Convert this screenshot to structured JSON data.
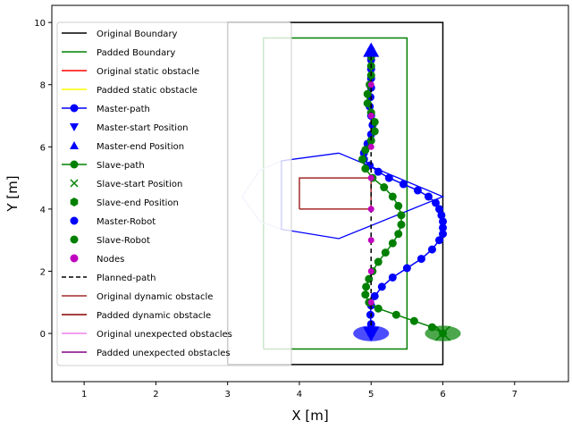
{
  "chart_data": {
    "type": "line",
    "xlabel": "X [m]",
    "ylabel": "Y [m]",
    "xlim": [
      0.55,
      7.75
    ],
    "ylim": [
      -1.55,
      10.55
    ],
    "xticks": [
      1,
      2,
      3,
      4,
      5,
      6,
      7
    ],
    "yticks": [
      0,
      2,
      4,
      6,
      8,
      10
    ],
    "grid": false,
    "legend_position": "upper-left",
    "colors": {
      "original_boundary": "#000000",
      "padded_boundary": "#008000",
      "original_static": "#ff0000",
      "padded_static": "#ffff00",
      "master": "#0000ff",
      "slave": "#008000",
      "nodes": "#bf00bf",
      "planned": "#000000",
      "original_dynamic": "#a52a2a",
      "padded_dynamic": "#8b0000",
      "original_unexpected": "#ee82ee",
      "padded_unexpected": "#800080",
      "lavender": "#c8c8f0"
    },
    "legend": [
      {
        "label": "Original Boundary",
        "kind": "line",
        "color": "#000000"
      },
      {
        "label": "Padded Boundary",
        "kind": "line",
        "color": "#008000"
      },
      {
        "label": "Original static obstacle",
        "kind": "line",
        "color": "#ff0000"
      },
      {
        "label": "Padded static obstacle",
        "kind": "line",
        "color": "#ffff00"
      },
      {
        "label": "Master-path",
        "kind": "line-marker",
        "color": "#0000ff"
      },
      {
        "label": "Master-start Position",
        "kind": "tri-down",
        "color": "#0000ff"
      },
      {
        "label": "Master-end Position",
        "kind": "tri-up",
        "color": "#0000ff"
      },
      {
        "label": "Slave-path",
        "kind": "line-marker",
        "color": "#008000"
      },
      {
        "label": "Slave-start Position",
        "kind": "x",
        "color": "#008000"
      },
      {
        "label": "Slave-end Position",
        "kind": "hex",
        "color": "#008000"
      },
      {
        "label": "Master-Robot",
        "kind": "dot",
        "color": "#0000ff"
      },
      {
        "label": "Slave-Robot",
        "kind": "dot",
        "color": "#008000"
      },
      {
        "label": "Nodes",
        "kind": "dot",
        "color": "#bf00bf"
      },
      {
        "label": "Planned-path",
        "kind": "dashed",
        "color": "#000000"
      },
      {
        "label": "Original dynamic obstacle",
        "kind": "line",
        "color": "#a52a2a"
      },
      {
        "label": "Padded dynamic obstacle",
        "kind": "line",
        "color": "#8b0000"
      },
      {
        "label": "Original unexpected obstacles",
        "kind": "line",
        "color": "#ee82ee"
      },
      {
        "label": "Padded unexpected obstacles",
        "kind": "line",
        "color": "#800080"
      }
    ],
    "original_boundary": [
      [
        3,
        -1
      ],
      [
        6,
        -1
      ],
      [
        6,
        10
      ],
      [
        3,
        10
      ],
      [
        3,
        -1
      ]
    ],
    "padded_boundary": [
      [
        3.5,
        -0.5
      ],
      [
        5.5,
        -0.5
      ],
      [
        5.5,
        9.5
      ],
      [
        3.5,
        9.5
      ],
      [
        3.5,
        -0.5
      ]
    ],
    "dynamic_obstacle": [
      [
        4,
        4
      ],
      [
        5,
        4
      ],
      [
        5,
        5
      ],
      [
        4,
        5
      ],
      [
        4,
        4
      ]
    ],
    "master_sweep_polygon": [
      [
        4.55,
        5.8
      ],
      [
        6.0,
        4.4
      ],
      [
        4.55,
        3.05
      ],
      [
        3.75,
        3.35
      ],
      [
        3.75,
        5.55
      ],
      [
        4.55,
        5.8
      ]
    ],
    "lavender_polygon": [
      [
        3.75,
        5.55
      ],
      [
        3.45,
        5.25
      ],
      [
        3.2,
        4.4
      ],
      [
        3.45,
        3.6
      ],
      [
        3.75,
        3.35
      ]
    ],
    "master_path_y": [
      0,
      0.3,
      0.6,
      0.9,
      1.2,
      1.5,
      1.8,
      2.1,
      2.4,
      2.7,
      3.0,
      3.2,
      3.4,
      3.6,
      3.8,
      4.0,
      4.2,
      4.4,
      4.6,
      4.8,
      5.0,
      5.2,
      5.4,
      5.6,
      5.8,
      6.1,
      6.4,
      6.7,
      7.0,
      7.3,
      7.6,
      7.9,
      8.2,
      8.5,
      8.8,
      9.1
    ],
    "master_path_x": [
      5.0,
      5.0,
      4.99,
      5.0,
      5.05,
      5.15,
      5.3,
      5.5,
      5.7,
      5.85,
      5.95,
      6.0,
      6.0,
      6.0,
      5.98,
      5.95,
      5.9,
      5.8,
      5.65,
      5.45,
      5.25,
      5.1,
      4.98,
      4.9,
      4.9,
      4.95,
      5.0,
      5.02,
      5.0,
      4.98,
      4.99,
      5.0,
      5.0,
      5.0,
      5.0,
      5.0
    ],
    "slave_path_y": [
      0,
      0.2,
      0.4,
      0.6,
      0.8,
      1.0,
      1.25,
      1.5,
      1.75,
      2.0,
      2.3,
      2.6,
      2.9,
      3.2,
      3.5,
      3.8,
      4.1,
      4.4,
      4.7,
      5.0,
      5.3,
      5.6,
      5.9,
      6.2,
      6.5,
      6.8,
      7.1,
      7.4,
      7.7,
      8.0,
      8.3,
      8.6,
      8.9
    ],
    "slave_path_x": [
      6.0,
      5.85,
      5.6,
      5.35,
      5.1,
      4.97,
      4.92,
      4.93,
      4.97,
      5.02,
      5.1,
      5.2,
      5.3,
      5.38,
      5.42,
      5.42,
      5.38,
      5.3,
      5.18,
      5.02,
      4.92,
      4.88,
      4.92,
      5.0,
      5.05,
      5.05,
      5.0,
      4.95,
      4.95,
      4.98,
      5.0,
      5.0,
      5.0
    ],
    "planned_path": [
      [
        5,
        0
      ],
      [
        5,
        9.1
      ]
    ],
    "nodes": [
      [
        5,
        0
      ],
      [
        5,
        1
      ],
      [
        5,
        2
      ],
      [
        5,
        3
      ],
      [
        5,
        4
      ],
      [
        5,
        5
      ],
      [
        5,
        6
      ],
      [
        5,
        7
      ],
      [
        5,
        8
      ],
      [
        5,
        9
      ]
    ],
    "master_start": [
      5,
      0
    ],
    "master_end": [
      5,
      9.1
    ],
    "slave_start": [
      6,
      0
    ],
    "master_robot": {
      "x": 5.0,
      "y": 0.0,
      "rx": 0.25,
      "ry": 0.25
    },
    "slave_robot": {
      "x": 6.0,
      "y": 0.0,
      "rx": 0.25,
      "ry": 0.25
    }
  }
}
